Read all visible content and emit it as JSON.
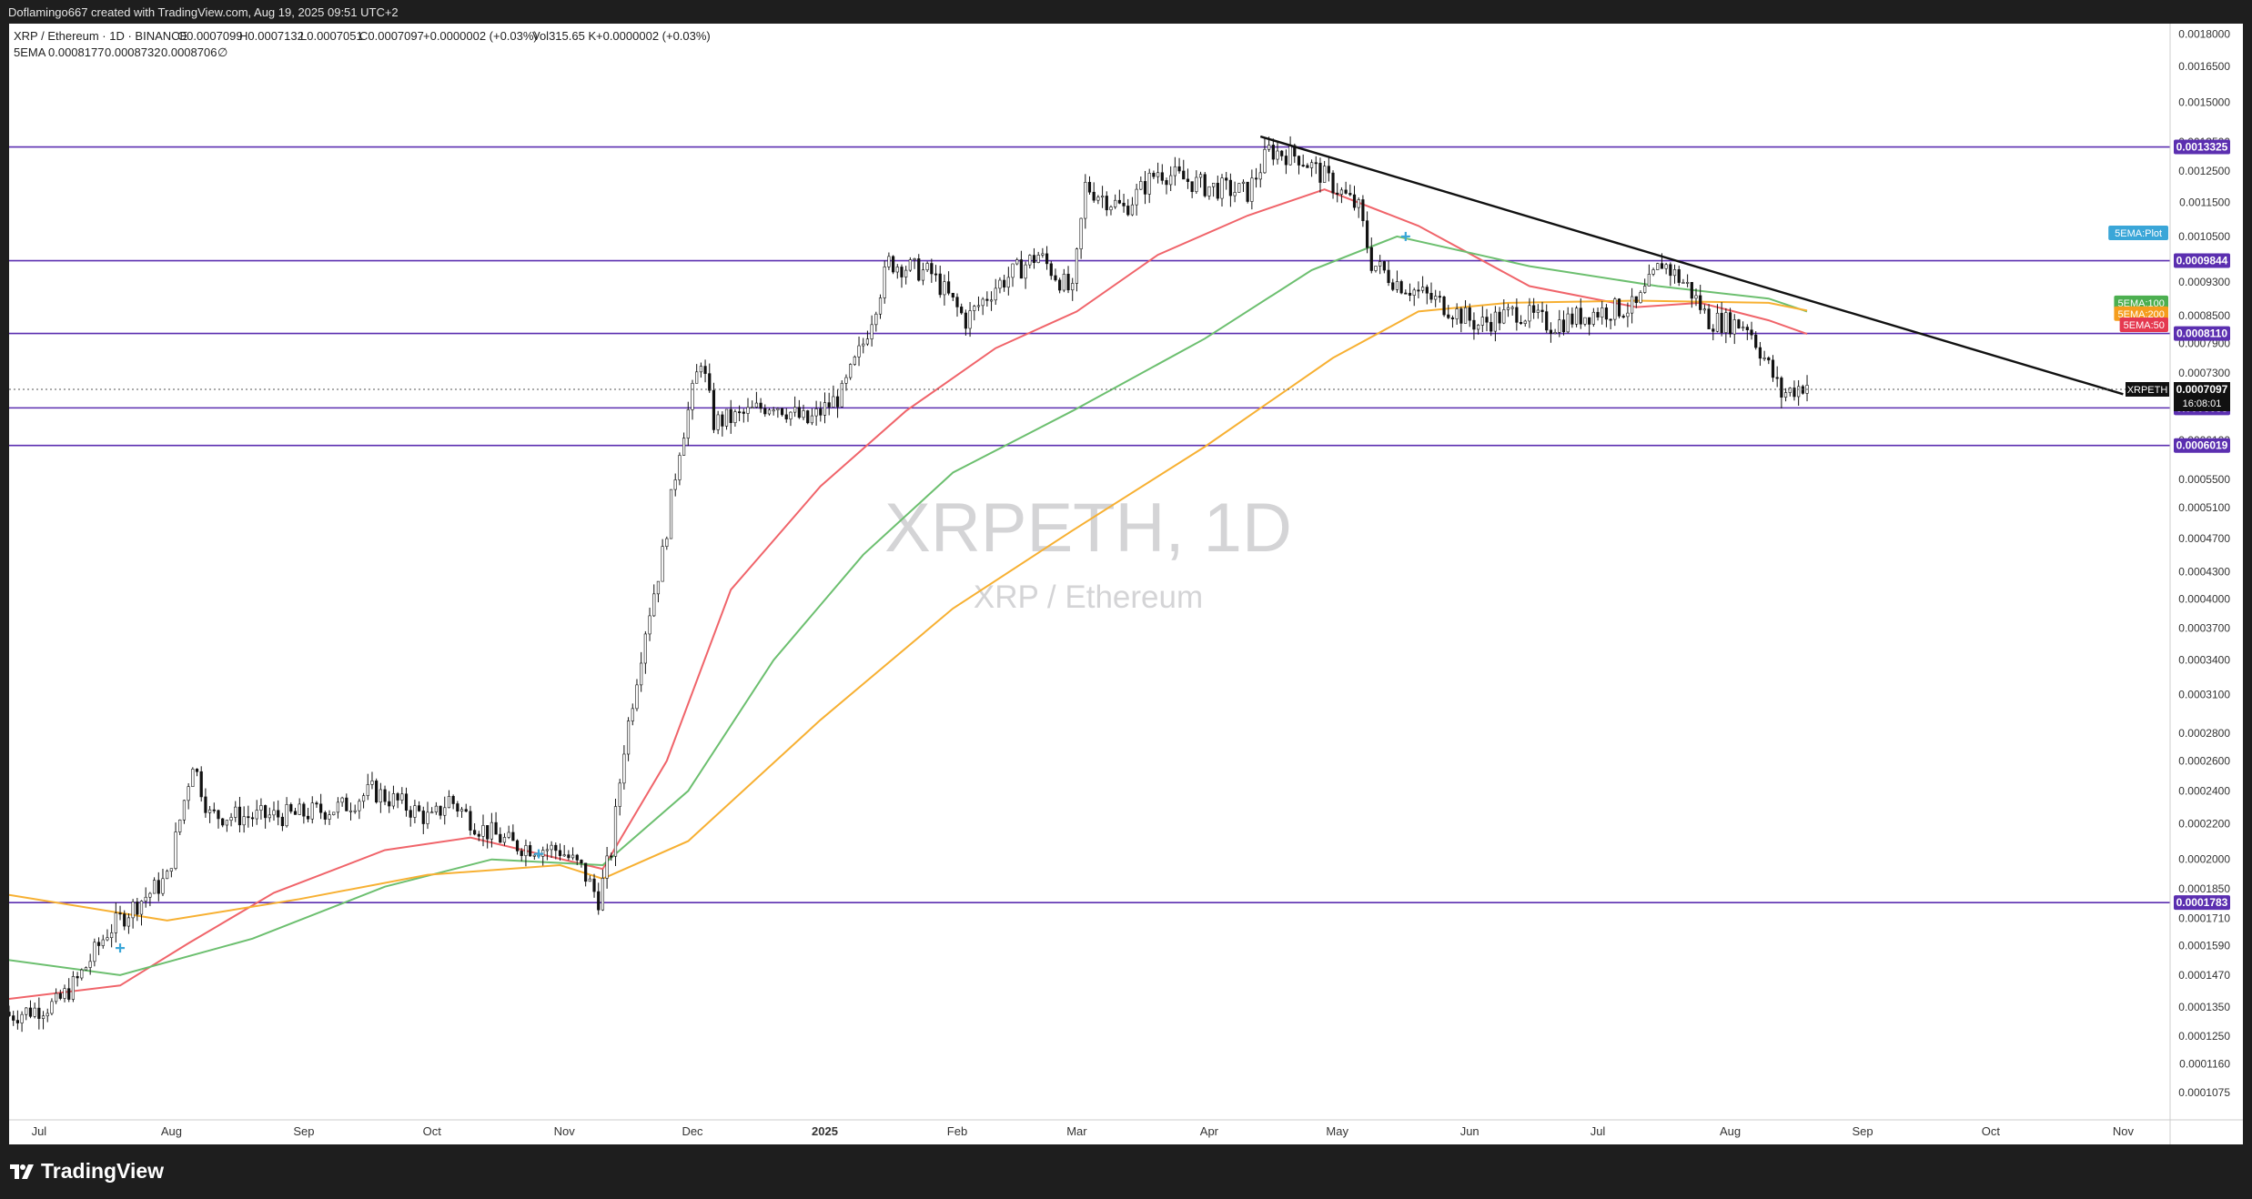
{
  "header": {
    "caption": "Doflamingo667 created with TradingView.com, Aug 19, 2025 09:51 UTC+2"
  },
  "footer": {
    "brand": "TradingView"
  },
  "chart": {
    "symbol_line": {
      "pair": "XRP / Ethereum · 1D · BINANCE",
      "open": "O0.0007099",
      "high": "H0.0007132",
      "low": "L0.0007051",
      "close": "C0.0007097",
      "change": "+0.0000002 (+0.03%)",
      "volume": "Vol315.65 K",
      "volume_change": "+0.0000002 (+0.03%)"
    },
    "indicator_line": {
      "name": "5EMA",
      "v1": "0.0008177",
      "v2": "0.0008732",
      "v3": "0.0008706",
      "v4": "∅"
    },
    "watermark": {
      "title": "XRPETH, 1D",
      "subtitle": "XRP / Ethereum"
    },
    "last_price": {
      "symbol": "XRPETH",
      "price": "0.0007097",
      "countdown": "16:08:01"
    },
    "ema_tags": [
      {
        "text": "5EMA:Plot",
        "color": "#3aa6d8",
        "price": 0.00106
      },
      {
        "text": "5EMA:100",
        "color": "#4caf50",
        "price": 0.00088
      },
      {
        "text": "5EMA:200",
        "color": "#f59d1d",
        "price": 0.000855
      },
      {
        "text": "5EMA:50",
        "color": "#e53950",
        "price": 0.00083
      }
    ],
    "level_labels": [
      "0.0013325",
      "0.0009844",
      "0.0008110",
      "0.0006653",
      "0.0006019",
      "0.0001783"
    ]
  },
  "chart_data": {
    "type": "candlestick",
    "title": "XRPETH, 1D",
    "subtitle": "XRP / Ethereum",
    "y_scale": "log",
    "ylim": [
      0.0001,
      0.00185
    ],
    "x_range": [
      "2024-06-24",
      "2025-11-12"
    ],
    "x_tick_labels": [
      "Jul",
      "Aug",
      "Sep",
      "Oct",
      "Nov",
      "Dec",
      "2025",
      "Feb",
      "Mar",
      "Apr",
      "May",
      "Jun",
      "Jul",
      "Aug",
      "Sep",
      "Oct",
      "Nov"
    ],
    "x_tick_dates": [
      "2024-07-01",
      "2024-08-01",
      "2024-09-01",
      "2024-10-01",
      "2024-11-01",
      "2024-12-01",
      "2025-01-01",
      "2025-02-01",
      "2025-03-01",
      "2025-04-01",
      "2025-05-01",
      "2025-06-01",
      "2025-07-01",
      "2025-08-01",
      "2025-09-01",
      "2025-10-01",
      "2025-11-01"
    ],
    "y_tick_labels": [
      "0.0018000",
      "0.0016500",
      "0.0015000",
      "0.0013500",
      "0.0012500",
      "0.0011500",
      "0.0010500",
      "0.0009900",
      "0.0009300",
      "0.0008500",
      "0.0007900",
      "0.0007300",
      "0.0006100",
      "0.0005500",
      "0.0005100",
      "0.0004700",
      "0.0004300",
      "0.0004000",
      "0.0003700",
      "0.0003400",
      "0.0003100",
      "0.0002800",
      "0.0002600",
      "0.0002400",
      "0.0002200",
      "0.0002000",
      "0.0001850",
      "0.0001710",
      "0.0001590",
      "0.0001470",
      "0.0001350",
      "0.0001250",
      "0.0001160",
      "0.0001075"
    ],
    "price_path": [
      [
        "2024-06-24",
        0.000132
      ],
      [
        "2024-07-05",
        0.000136
      ],
      [
        "2024-07-10",
        0.000145
      ],
      [
        "2024-07-17",
        0.000165
      ],
      [
        "2024-07-24",
        0.000178
      ],
      [
        "2024-07-31",
        0.00019
      ],
      [
        "2024-08-06",
        0.00026
      ],
      [
        "2024-08-10",
        0.000225
      ],
      [
        "2024-08-20",
        0.000224
      ],
      [
        "2024-08-30",
        0.000225
      ],
      [
        "2024-09-10",
        0.00023
      ],
      [
        "2024-09-17",
        0.00024
      ],
      [
        "2024-09-23",
        0.000233
      ],
      [
        "2024-10-01",
        0.000222
      ],
      [
        "2024-10-05",
        0.000235
      ],
      [
        "2024-10-12",
        0.000218
      ],
      [
        "2024-10-20",
        0.000208
      ],
      [
        "2024-10-31",
        0.000205
      ],
      [
        "2024-11-05",
        0.000195
      ],
      [
        "2024-11-09",
        0.00018
      ],
      [
        "2024-11-12",
        0.000205
      ],
      [
        "2024-11-15",
        0.00027
      ],
      [
        "2024-11-20",
        0.00037
      ],
      [
        "2024-11-24",
        0.00045
      ],
      [
        "2024-11-28",
        0.0006
      ],
      [
        "2024-12-03",
        0.00076
      ],
      [
        "2024-12-06",
        0.00064
      ],
      [
        "2024-12-12",
        0.00065
      ],
      [
        "2024-12-20",
        0.000675
      ],
      [
        "2024-12-28",
        0.00064
      ],
      [
        "2025-01-05",
        0.00069
      ],
      [
        "2025-01-10",
        0.00079
      ],
      [
        "2025-01-16",
        0.00098
      ],
      [
        "2025-01-26",
        0.00095
      ],
      [
        "2025-02-03",
        0.00084
      ],
      [
        "2025-02-10",
        0.00092
      ],
      [
        "2025-02-20",
        0.001
      ],
      [
        "2025-02-28",
        0.0009
      ],
      [
        "2025-03-03",
        0.0012
      ],
      [
        "2025-03-12",
        0.00113
      ],
      [
        "2025-03-20",
        0.00125
      ],
      [
        "2025-03-31",
        0.0012
      ],
      [
        "2025-04-10",
        0.00118
      ],
      [
        "2025-04-15",
        0.00132
      ],
      [
        "2025-04-22",
        0.0013
      ],
      [
        "2025-04-28",
        0.00123
      ],
      [
        "2025-05-06",
        0.00113
      ],
      [
        "2025-05-09",
        0.00098
      ],
      [
        "2025-05-15",
        0.00093
      ],
      [
        "2025-05-25",
        0.00088
      ],
      [
        "2025-06-03",
        0.00083
      ],
      [
        "2025-06-12",
        0.00086
      ],
      [
        "2025-06-20",
        0.00083
      ],
      [
        "2025-07-01",
        0.00086
      ],
      [
        "2025-07-10",
        0.00087
      ],
      [
        "2025-07-16",
        0.00098
      ],
      [
        "2025-07-22",
        0.00092
      ],
      [
        "2025-07-27",
        0.00084
      ],
      [
        "2025-08-05",
        0.00083
      ],
      [
        "2025-08-09",
        0.00076
      ],
      [
        "2025-08-13",
        0.00069
      ],
      [
        "2025-08-16",
        0.0007
      ],
      [
        "2025-08-19",
        0.00071
      ]
    ],
    "series": [
      {
        "name": "5EMA:50",
        "color": "#f0646a",
        "points": [
          [
            "2024-06-24",
            0.000138
          ],
          [
            "2024-07-20",
            0.000143
          ],
          [
            "2024-08-05",
            0.00016
          ],
          [
            "2024-08-25",
            0.000183
          ],
          [
            "2024-09-20",
            0.000205
          ],
          [
            "2024-10-10",
            0.000212
          ],
          [
            "2024-11-10",
            0.000195
          ],
          [
            "2024-11-25",
            0.00026
          ],
          [
            "2024-12-10",
            0.00041
          ],
          [
            "2024-12-31",
            0.00054
          ],
          [
            "2025-01-20",
            0.00066
          ],
          [
            "2025-02-10",
            0.00078
          ],
          [
            "2025-03-01",
            0.00086
          ],
          [
            "2025-03-20",
            0.001
          ],
          [
            "2025-04-10",
            0.00111
          ],
          [
            "2025-04-28",
            0.00119
          ],
          [
            "2025-05-20",
            0.00108
          ],
          [
            "2025-06-15",
            0.00092
          ],
          [
            "2025-07-10",
            0.00087
          ],
          [
            "2025-07-25",
            0.00088
          ],
          [
            "2025-08-10",
            0.00084
          ],
          [
            "2025-08-19",
            0.00081
          ]
        ]
      },
      {
        "name": "5EMA:100",
        "color": "#6cbf6f",
        "points": [
          [
            "2024-06-24",
            0.000153
          ],
          [
            "2024-07-20",
            0.000147
          ],
          [
            "2024-08-20",
            0.000162
          ],
          [
            "2024-09-20",
            0.000186
          ],
          [
            "2024-10-15",
            0.0002
          ],
          [
            "2024-11-10",
            0.000197
          ],
          [
            "2024-11-30",
            0.00024
          ],
          [
            "2024-12-20",
            0.00034
          ],
          [
            "2025-01-10",
            0.00045
          ],
          [
            "2025-01-31",
            0.00056
          ],
          [
            "2025-02-28",
            0.00066
          ],
          [
            "2025-03-31",
            0.0008
          ],
          [
            "2025-04-25",
            0.00096
          ],
          [
            "2025-05-15",
            0.00105
          ],
          [
            "2025-06-15",
            0.00097
          ],
          [
            "2025-07-15",
            0.00092
          ],
          [
            "2025-08-10",
            0.00089
          ],
          [
            "2025-08-19",
            0.00086
          ]
        ]
      },
      {
        "name": "5EMA:200",
        "color": "#f7b032",
        "points": [
          [
            "2024-06-24",
            0.000182
          ],
          [
            "2024-07-31",
            0.00017
          ],
          [
            "2024-08-31",
            0.00018
          ],
          [
            "2024-09-30",
            0.000192
          ],
          [
            "2024-10-31",
            0.000197
          ],
          [
            "2024-11-10",
            0.00019
          ],
          [
            "2024-11-30",
            0.00021
          ],
          [
            "2024-12-31",
            0.00029
          ],
          [
            "2025-01-31",
            0.00039
          ],
          [
            "2025-02-28",
            0.00048
          ],
          [
            "2025-03-31",
            0.0006
          ],
          [
            "2025-04-30",
            0.00076
          ],
          [
            "2025-05-20",
            0.00086
          ],
          [
            "2025-06-10",
            0.00088
          ],
          [
            "2025-07-10",
            0.000885
          ],
          [
            "2025-08-10",
            0.00088
          ],
          [
            "2025-08-19",
            0.000862
          ]
        ]
      }
    ],
    "horizontal_levels": [
      0.0013325,
      0.0009844,
      0.000811,
      0.0006653,
      0.0006019,
      0.0001783
    ],
    "trendline": [
      [
        "2025-04-13",
        0.00137
      ],
      [
        "2025-11-01",
        0.00069
      ]
    ],
    "markers": [
      {
        "date": "2024-07-20",
        "price": 0.000158,
        "color": "#3aa6d8"
      },
      {
        "date": "2024-10-26",
        "price": 0.000203,
        "color": "#3aa6d8"
      },
      {
        "date": "2025-05-17",
        "price": 0.00105,
        "color": "#3aa6d8"
      }
    ]
  }
}
